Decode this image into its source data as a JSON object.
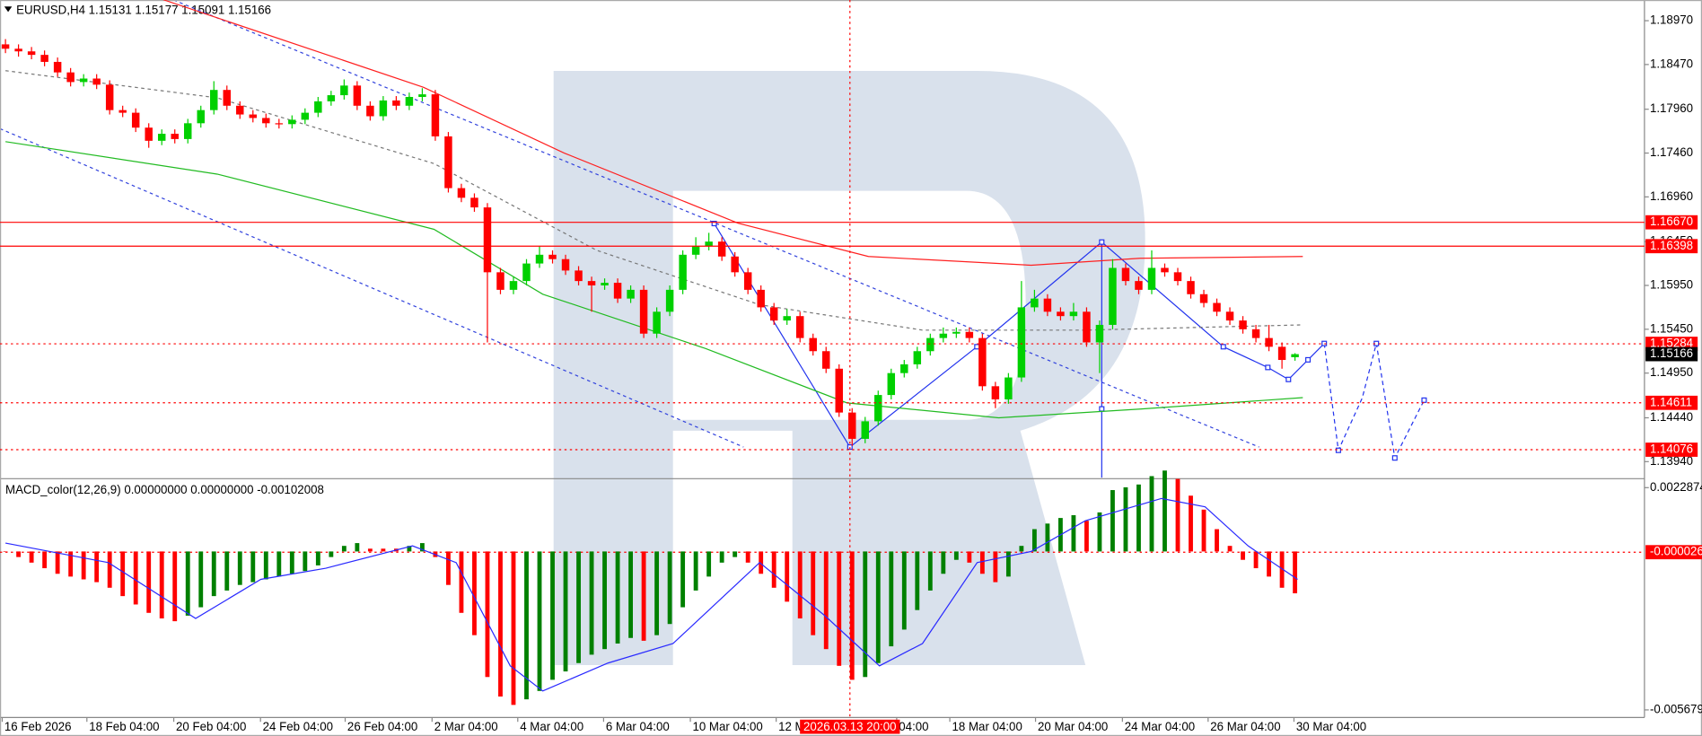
{
  "chart_data": [
    {
      "type": "candlestick",
      "title": "EURUSD,H4  1.15131 1.15177 1.15091 1.15166",
      "up_color": "#00d000",
      "down_color": "#ff0000",
      "xlim": [
        -0.42,
        125.83
      ],
      "ylim": [
        1.13758,
        1.19206
      ],
      "yticks": [
        {
          "value": 1.1897,
          "label": "1.18970"
        },
        {
          "value": 1.1847,
          "label": "1.18470"
        },
        {
          "value": 1.1796,
          "label": "1.17960"
        },
        {
          "value": 1.1746,
          "label": "1.17460"
        },
        {
          "value": 1.1696,
          "label": "1.16960"
        },
        {
          "value": 1.1645,
          "label": "1.16450"
        },
        {
          "value": 1.1595,
          "label": "1.15950"
        },
        {
          "value": 1.1545,
          "label": "1.15450"
        },
        {
          "value": 1.1495,
          "label": "1.14950"
        },
        {
          "value": 1.1444,
          "label": "1.14440"
        },
        {
          "value": 1.1394,
          "label": "1.13940"
        }
      ],
      "ohlc": [
        [
          1.187,
          1.1876,
          1.186,
          1.1865
        ],
        [
          1.1865,
          1.187,
          1.1856,
          1.1862
        ],
        [
          1.1862,
          1.1867,
          1.1853,
          1.1858
        ],
        [
          1.1858,
          1.1863,
          1.1845,
          1.185
        ],
        [
          1.185,
          1.1855,
          1.1833,
          1.1838
        ],
        [
          1.1838,
          1.1843,
          1.1822,
          1.1827
        ],
        [
          1.1827,
          1.1836,
          1.1822,
          1.1831
        ],
        [
          1.1831,
          1.1836,
          1.1819,
          1.1824
        ],
        [
          1.1824,
          1.1829,
          1.179,
          1.1795
        ],
        [
          1.1795,
          1.18,
          1.1787,
          1.1792
        ],
        [
          1.1792,
          1.1797,
          1.177,
          1.1775
        ],
        [
          1.1775,
          1.178,
          1.1752,
          1.176
        ],
        [
          1.176,
          1.1773,
          1.1755,
          1.1768
        ],
        [
          1.1768,
          1.1773,
          1.1757,
          1.1762
        ],
        [
          1.1762,
          1.1785,
          1.1757,
          1.178
        ],
        [
          1.178,
          1.18,
          1.1775,
          1.1795
        ],
        [
          1.1795,
          1.1828,
          1.179,
          1.1818
        ],
        [
          1.1818,
          1.1823,
          1.1795,
          1.18
        ],
        [
          1.18,
          1.1805,
          1.1785,
          1.179
        ],
        [
          1.179,
          1.1795,
          1.1781,
          1.1786
        ],
        [
          1.1786,
          1.1791,
          1.1775,
          1.178
        ],
        [
          1.178,
          1.1785,
          1.1774,
          1.1779
        ],
        [
          1.1779,
          1.1789,
          1.1774,
          1.1784
        ],
        [
          1.1784,
          1.1797,
          1.1779,
          1.1792
        ],
        [
          1.1792,
          1.181,
          1.1787,
          1.1805
        ],
        [
          1.1805,
          1.1817,
          1.18,
          1.1812
        ],
        [
          1.1812,
          1.183,
          1.1807,
          1.1823
        ],
        [
          1.1823,
          1.1828,
          1.1795,
          1.18
        ],
        [
          1.18,
          1.1805,
          1.1783,
          1.1788
        ],
        [
          1.1788,
          1.1811,
          1.1783,
          1.1806
        ],
        [
          1.1806,
          1.1811,
          1.1795,
          1.18
        ],
        [
          1.18,
          1.1815,
          1.1795,
          1.181
        ],
        [
          1.181,
          1.182,
          1.1805,
          1.1813
        ],
        [
          1.1813,
          1.1818,
          1.176,
          1.1765
        ],
        [
          1.1765,
          1.177,
          1.1701,
          1.1706
        ],
        [
          1.1706,
          1.1711,
          1.169,
          1.1695
        ],
        [
          1.1695,
          1.17,
          1.1679,
          1.1684
        ],
        [
          1.1684,
          1.1689,
          1.153,
          1.161
        ],
        [
          1.161,
          1.1615,
          1.1585,
          1.159
        ],
        [
          1.159,
          1.1605,
          1.1585,
          1.16
        ],
        [
          1.16,
          1.1625,
          1.1595,
          1.162
        ],
        [
          1.162,
          1.164,
          1.1615,
          1.163
        ],
        [
          1.163,
          1.1635,
          1.162,
          1.1625
        ],
        [
          1.1625,
          1.163,
          1.1607,
          1.1612
        ],
        [
          1.1612,
          1.1617,
          1.1595,
          1.16
        ],
        [
          1.16,
          1.1605,
          1.1565,
          1.1595
        ],
        [
          1.1595,
          1.1603,
          1.159,
          1.1598
        ],
        [
          1.1598,
          1.1603,
          1.1575,
          1.158
        ],
        [
          1.158,
          1.1595,
          1.1575,
          1.159
        ],
        [
          1.159,
          1.1595,
          1.1535,
          1.154
        ],
        [
          1.154,
          1.157,
          1.1535,
          1.1565
        ],
        [
          1.1565,
          1.1595,
          1.156,
          1.159
        ],
        [
          1.159,
          1.1635,
          1.1585,
          1.163
        ],
        [
          1.163,
          1.165,
          1.1625,
          1.164
        ],
        [
          1.164,
          1.1655,
          1.1635,
          1.1645
        ],
        [
          1.1645,
          1.165,
          1.1623,
          1.1628
        ],
        [
          1.1628,
          1.1633,
          1.1605,
          1.161
        ],
        [
          1.161,
          1.1615,
          1.1585,
          1.159
        ],
        [
          1.159,
          1.1595,
          1.1565,
          1.157
        ],
        [
          1.157,
          1.1575,
          1.155,
          1.1555
        ],
        [
          1.1555,
          1.1568,
          1.155,
          1.156
        ],
        [
          1.156,
          1.1565,
          1.153,
          1.1535
        ],
        [
          1.1535,
          1.154,
          1.1515,
          1.152
        ],
        [
          1.152,
          1.1525,
          1.1495,
          1.15
        ],
        [
          1.15,
          1.1505,
          1.1445,
          1.145
        ],
        [
          1.145,
          1.1455,
          1.1412,
          1.142
        ],
        [
          1.142,
          1.1445,
          1.1415,
          1.144
        ],
        [
          1.144,
          1.1475,
          1.1435,
          1.147
        ],
        [
          1.147,
          1.15,
          1.1465,
          1.1495
        ],
        [
          1.1495,
          1.151,
          1.149,
          1.1505
        ],
        [
          1.1505,
          1.1525,
          1.15,
          1.152
        ],
        [
          1.152,
          1.154,
          1.1515,
          1.1535
        ],
        [
          1.1535,
          1.1547,
          1.153,
          1.154
        ],
        [
          1.154,
          1.1547,
          1.1535,
          1.1542
        ],
        [
          1.1542,
          1.1547,
          1.153,
          1.1535
        ],
        [
          1.1535,
          1.154,
          1.1475,
          1.148
        ],
        [
          1.148,
          1.1485,
          1.1455,
          1.1465
        ],
        [
          1.1465,
          1.1495,
          1.146,
          1.149
        ],
        [
          1.149,
          1.16,
          1.1485,
          1.157
        ],
        [
          1.157,
          1.159,
          1.1565,
          1.158
        ],
        [
          1.158,
          1.1585,
          1.156,
          1.1565
        ],
        [
          1.1565,
          1.157,
          1.1555,
          1.156
        ],
        [
          1.156,
          1.1575,
          1.1555,
          1.1565
        ],
        [
          1.1565,
          1.157,
          1.1525,
          1.153
        ],
        [
          1.153,
          1.1555,
          1.1495,
          1.155
        ],
        [
          1.155,
          1.1625,
          1.1545,
          1.1615
        ],
        [
          1.1615,
          1.162,
          1.1595,
          1.16
        ],
        [
          1.16,
          1.1605,
          1.1585,
          1.159
        ],
        [
          1.159,
          1.1635,
          1.1585,
          1.1615
        ],
        [
          1.1615,
          1.162,
          1.1605,
          1.161
        ],
        [
          1.161,
          1.1615,
          1.1595,
          1.16
        ],
        [
          1.16,
          1.1605,
          1.158,
          1.1585
        ],
        [
          1.1585,
          1.159,
          1.157,
          1.1575
        ],
        [
          1.1575,
          1.158,
          1.156,
          1.1565
        ],
        [
          1.1565,
          1.157,
          1.155,
          1.1555
        ],
        [
          1.1555,
          1.156,
          1.154,
          1.1545
        ],
        [
          1.1545,
          1.155,
          1.153,
          1.1535
        ],
        [
          1.1535,
          1.155,
          1.152,
          1.1525
        ],
        [
          1.1525,
          1.153,
          1.15,
          1.151
        ],
        [
          1.15131,
          1.15177,
          1.15091,
          1.15166
        ]
      ],
      "lines": [
        {
          "color": "#ff2020",
          "dash": false,
          "x": [
            12.1,
            32.1,
            42.9,
            56.25,
            66.25,
            78.75,
            87.1,
            99.6
          ],
          "values": [
            1.1921,
            1.1821,
            1.1746,
            1.1666,
            1.1628,
            1.1618,
            1.1626,
            1.1628
          ]
        },
        {
          "color": "#22bb22",
          "dash": false,
          "x": [
            0,
            16.25,
            32.9,
            41.25,
            53.75,
            64.6,
            76.25,
            87.1,
            99.6
          ],
          "values": [
            1.1759,
            1.1722,
            1.1659,
            1.1585,
            1.1523,
            1.1461,
            1.1444,
            1.1454,
            1.1467
          ]
        },
        {
          "color": "#777777",
          "dash": true,
          "x": [
            0,
            16.25,
            32.9,
            45.4,
            57.9,
            70.4,
            82.9,
            99.6
          ],
          "values": [
            1.184,
            1.1809,
            1.1734,
            1.1635,
            1.1573,
            1.1544,
            1.1544,
            1.155
          ]
        }
      ],
      "levels": {
        "values": [
          1.1667,
          1.16398,
          1.15284,
          1.14611,
          1.14076
        ],
        "value_labels": [
          "1.16670",
          "1.16398",
          "1.15284",
          "1.14611",
          "1.14076"
        ],
        "dashed": [
          false,
          false,
          true,
          true,
          true
        ],
        "color": "#ff0000"
      },
      "last_price": {
        "value": 1.15166,
        "label": "1.15166"
      },
      "x_labels": {
        "x": [
          -0.25,
          6.25,
          12.92,
          19.58,
          26.08,
          32.75,
          39.33,
          45.92,
          52.58,
          59.17,
          68.42,
          72.5,
          79.08,
          85.75,
          92.33,
          98.92
        ],
        "labels": [
          "16 Feb 2026",
          "18 Feb 04:00",
          "20 Feb 04:00",
          "24 Feb 04:00",
          "26 Feb 04:00",
          "2 Mar 04:00",
          "4 Mar 04:00",
          "6 Mar 04:00",
          "10 Mar 04:00",
          "12 M",
          "04:00",
          "18 Mar 04:00",
          "20 Mar 04:00",
          "24 Mar 04:00",
          "26 Mar 04:00",
          "30 Mar 04:00"
        ]
      },
      "crosshair": {
        "x": 64.83,
        "label": "2026.03.13 20:00"
      }
    },
    {
      "type": "bar",
      "title": "MACD_color(12,26,9) 0.00000000 0.00000000 -0.00102008",
      "up_color": "#008000",
      "down_color": "#ff0000",
      "ylim": [
        -0.00595,
        0.00257
      ],
      "yticks": [
        {
          "value": 0.0022874,
          "label": "0.0022874"
        },
        {
          "value": -2.6e-05,
          "label": "-0.000026"
        },
        {
          "value": -0.005679,
          "label": "-0.0056790"
        }
      ],
      "zero_level_tick": 1,
      "values": [
        0.0,
        -0.0002,
        -0.0004,
        -0.0006,
        -0.0008,
        -0.0009,
        -0.001,
        -0.0011,
        -0.0013,
        -0.0016,
        -0.0019,
        -0.0022,
        -0.0024,
        -0.0025,
        -0.0023,
        -0.002,
        -0.0016,
        -0.0014,
        -0.0012,
        -0.0011,
        -0.001,
        -0.0009,
        -0.0008,
        -0.0007,
        -0.0005,
        -0.0002,
        0.0002,
        0.0003,
        0.0001,
        0.0001,
        0.0001,
        0.0002,
        0.0003,
        -0.0002,
        -0.0012,
        -0.0022,
        -0.003,
        -0.0045,
        -0.0052,
        -0.0055,
        -0.0053,
        -0.005,
        -0.0046,
        -0.0043,
        -0.004,
        -0.0037,
        -0.0035,
        -0.0033,
        -0.0031,
        -0.0032,
        -0.003,
        -0.0026,
        -0.002,
        -0.0014,
        -0.0009,
        -0.0004,
        -0.0002,
        -0.0004,
        -0.0008,
        -0.0013,
        -0.0018,
        -0.0024,
        -0.003,
        -0.0035,
        -0.0041,
        -0.0046,
        -0.0045,
        -0.004,
        -0.0034,
        -0.0028,
        -0.0021,
        -0.0014,
        -0.0008,
        -0.0003,
        -0.0004,
        -0.0008,
        -0.0011,
        -0.0009,
        0.0002,
        0.0008,
        0.001,
        0.0012,
        0.0013,
        0.0011,
        0.0014,
        0.0022,
        0.0023,
        0.0024,
        0.0027,
        0.0029,
        0.0026,
        0.002,
        0.0015,
        0.0008,
        0.0002,
        -0.0003,
        -0.0006,
        -0.0009,
        -0.0013,
        -0.0015
      ],
      "signal": {
        "color": "#2a2aff",
        "x": [
          0,
          7.9,
          14.6,
          19.6,
          24.6,
          31.25,
          34.6,
          38.75,
          41.25,
          46.25,
          51.25,
          57.9,
          62.9,
          67.1,
          70.4,
          74.6,
          78.75,
          82.9,
          88.75,
          92.1,
          95.4,
          99.2
        ],
        "values": [
          0.0003,
          -0.0004,
          -0.0024,
          -0.001,
          -0.0006,
          0.0002,
          -0.0004,
          -0.0041,
          -0.005,
          -0.004,
          -0.0033,
          -0.0004,
          -0.0023,
          -0.0041,
          -0.0033,
          -0.0004,
          0.0,
          0.0011,
          0.0019,
          0.0016,
          0.0002,
          -0.001
        ]
      }
    }
  ]
}
